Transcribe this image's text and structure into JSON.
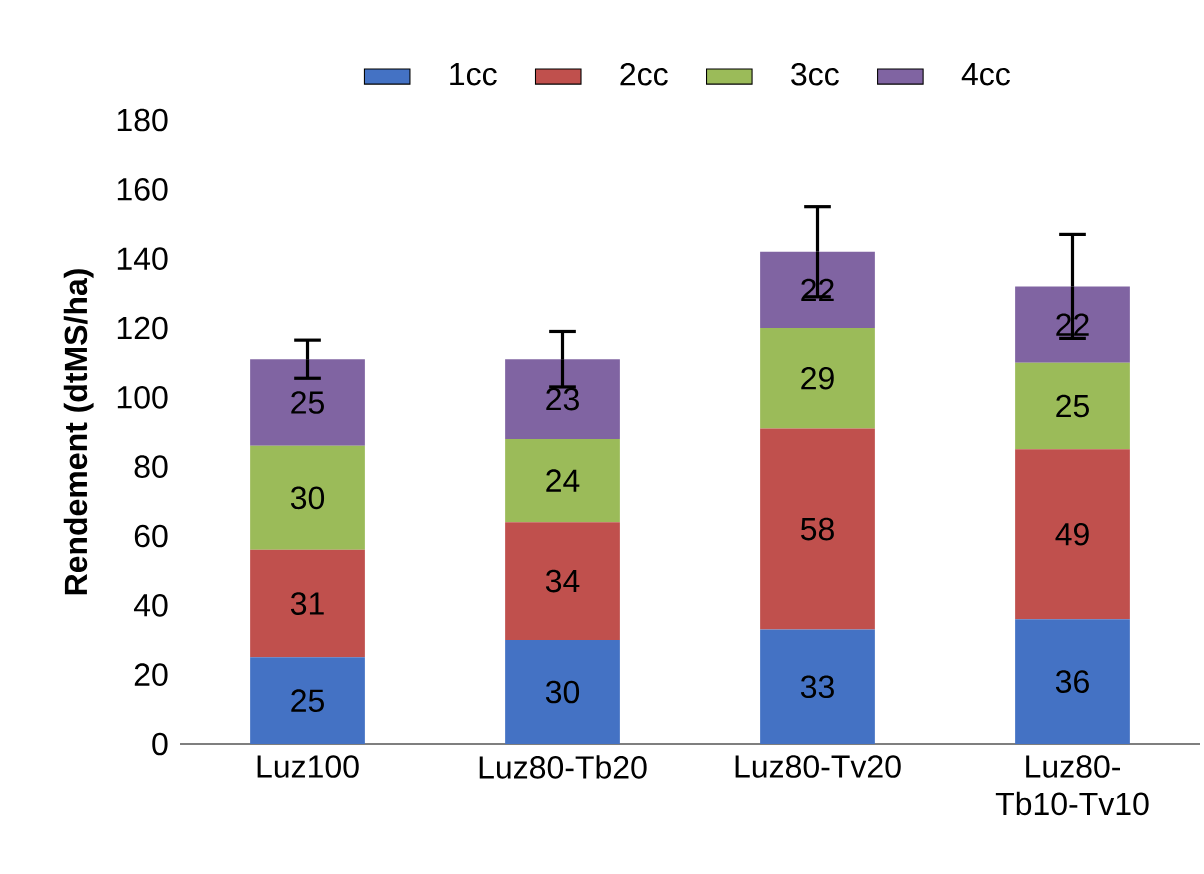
{
  "chart_data": {
    "type": "bar",
    "stacked": true,
    "ylabel": "Rendement (dtMS/ha)",
    "categories": [
      "Luz100",
      "Luz80-Tb20",
      "Luz80-Tv20",
      "Luz80-Tb10-Tv10"
    ],
    "series": [
      {
        "name": "1cc",
        "color": "#4472c4",
        "values": [
          25,
          30,
          33,
          36
        ]
      },
      {
        "name": "2cc",
        "color": "#c0504d",
        "values": [
          31,
          34,
          58,
          49
        ]
      },
      {
        "name": "3cc",
        "color": "#9bbb59",
        "values": [
          30,
          24,
          29,
          25
        ]
      },
      {
        "name": "4cc",
        "color": "#8064a2",
        "values": [
          25,
          23,
          22,
          22
        ],
        "errors": [
          5.5,
          8,
          13,
          15
        ]
      }
    ],
    "ylim": [
      0,
      180
    ],
    "yticks": [
      0,
      20,
      40,
      60,
      80,
      100,
      120,
      140,
      160,
      180
    ],
    "data_labels": true,
    "legend": "top",
    "grid": false
  }
}
